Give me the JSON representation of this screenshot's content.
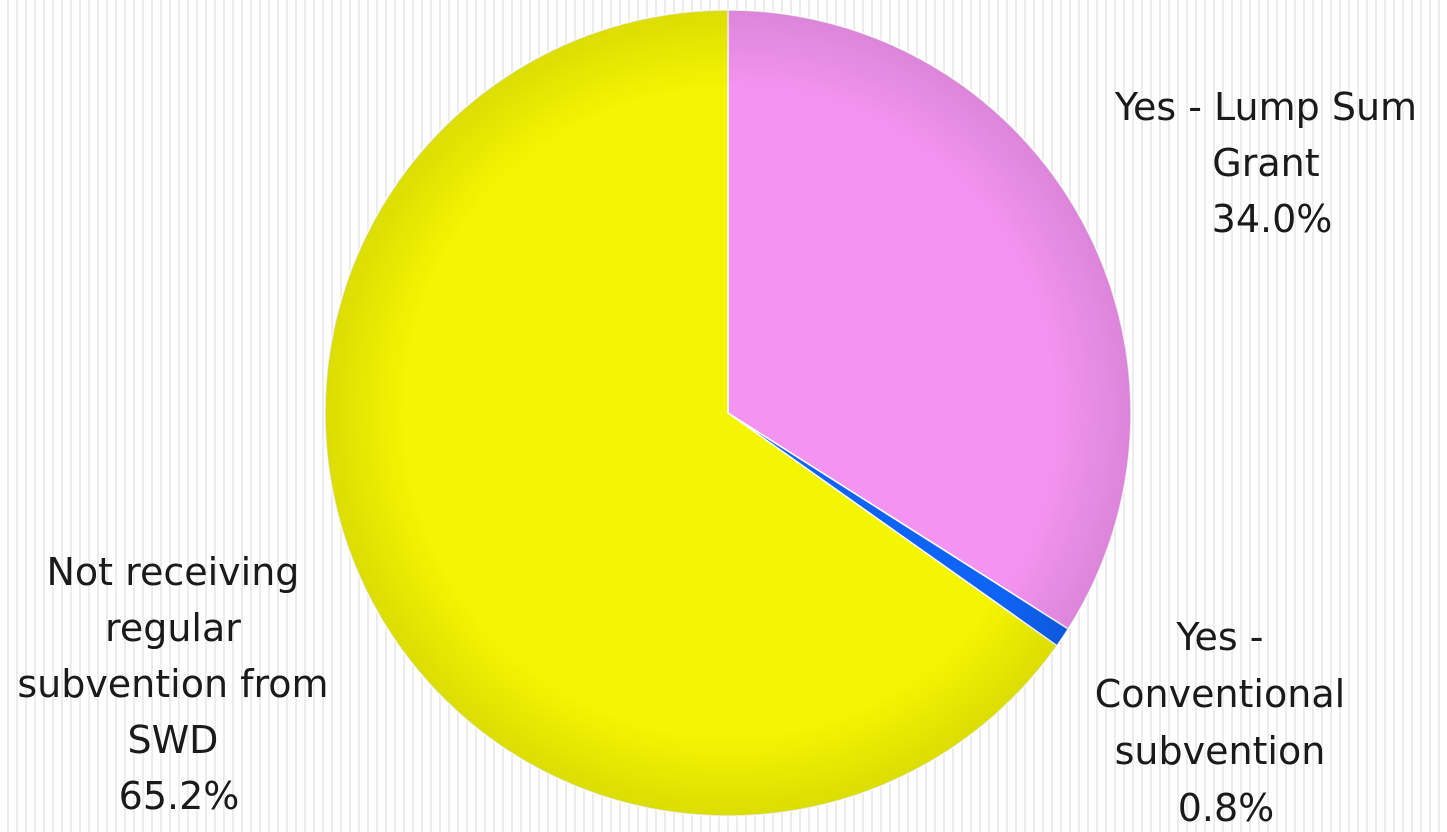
{
  "chart_data": {
    "type": "pie",
    "title": "",
    "start_angle_deg": 0,
    "direction": "clockwise",
    "legend": "none",
    "slices": [
      {
        "label_lines": [
          "Yes - Lump Sum",
          "Grant"
        ],
        "value": 34.0,
        "percent_label": "34.0%",
        "color": "#f494f2"
      },
      {
        "label_lines": [
          "Yes -",
          "Conventional",
          "subvention"
        ],
        "value": 0.8,
        "percent_label": "0.8%",
        "color": "#0f63f5"
      },
      {
        "label_lines": [
          "Not receiving",
          "regular",
          "subvention from",
          "SWD"
        ],
        "value": 65.2,
        "percent_label": "65.2%",
        "color": "#f4f502"
      }
    ]
  }
}
